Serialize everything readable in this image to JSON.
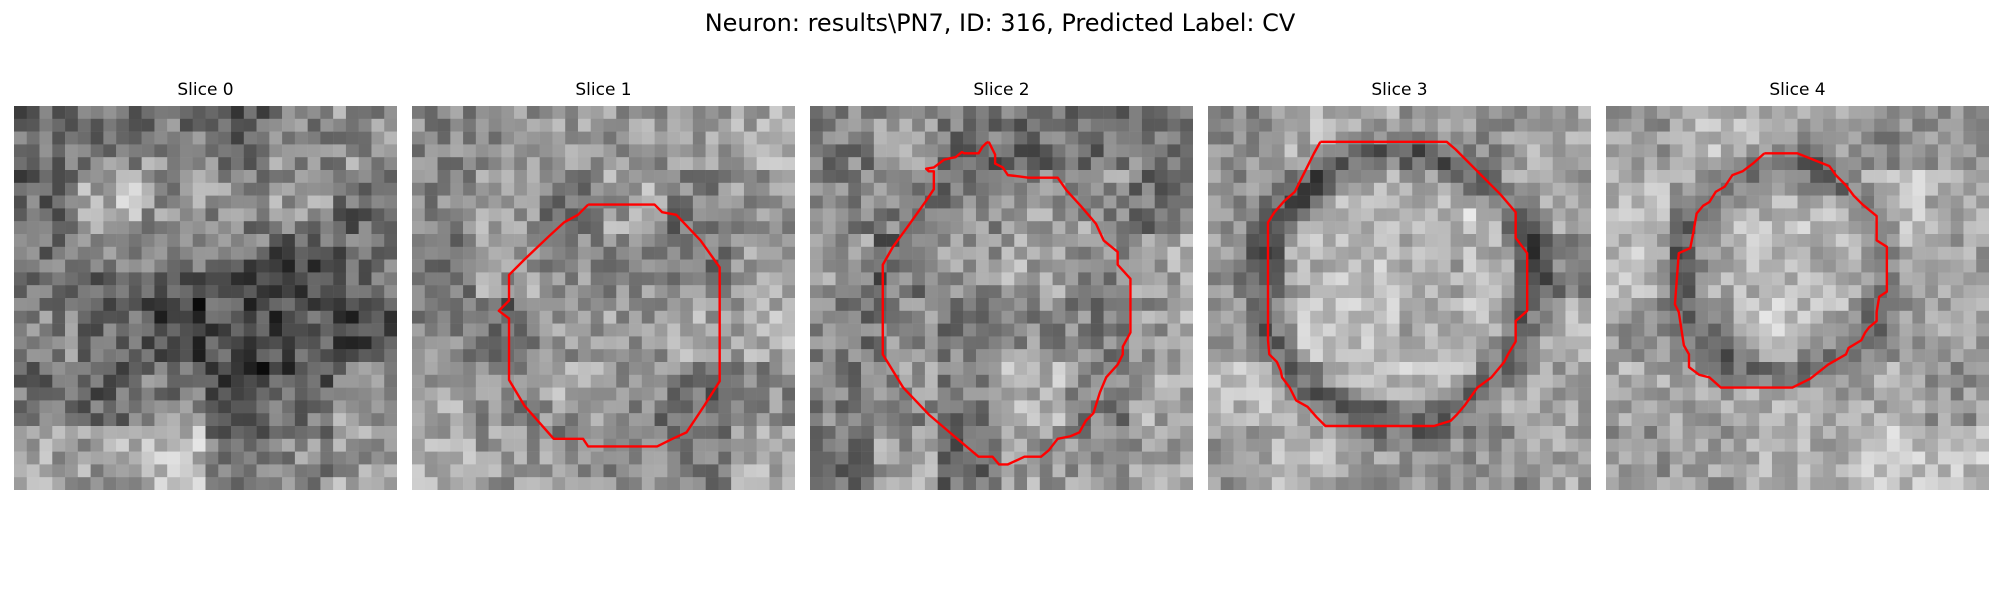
{
  "figure": {
    "title": "Neuron: results\\PN7, ID: 316, Predicted Label: CV",
    "contour_color": "#ff0000",
    "colormap": "gray",
    "grid_size": 30
  },
  "slices": [
    {
      "title": "Slice 0",
      "has_contour": false
    },
    {
      "title": "Slice 1",
      "has_contour": true
    },
    {
      "title": "Slice 2",
      "has_contour": true
    },
    {
      "title": "Slice 3",
      "has_contour": true
    },
    {
      "title": "Slice 4",
      "has_contour": true
    }
  ]
}
